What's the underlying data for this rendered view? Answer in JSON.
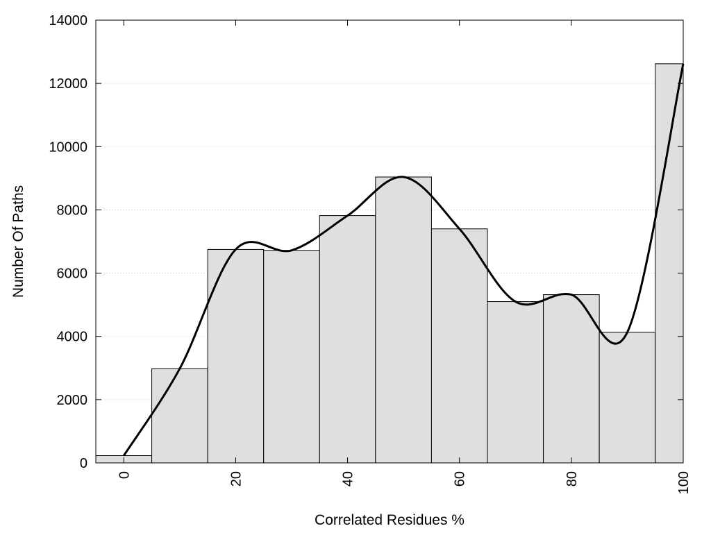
{
  "chart_data": {
    "type": "bar",
    "xlabel": "Correlated Residues %",
    "ylabel": "Number Of Paths",
    "xlim": [
      -5,
      100
    ],
    "ylim": [
      0,
      14000
    ],
    "x_ticks": [
      0,
      20,
      40,
      60,
      80,
      100
    ],
    "y_ticks": [
      0,
      2000,
      4000,
      6000,
      8000,
      10000,
      12000,
      14000
    ],
    "grid": "horizontal dotted",
    "categories": [
      0,
      10,
      20,
      30,
      40,
      50,
      60,
      70,
      80,
      90,
      100
    ],
    "values": [
      230,
      2980,
      6750,
      6720,
      7820,
      9040,
      7400,
      5100,
      5320,
      4130,
      12620
    ],
    "bar_width": 10,
    "smooth_curve": {
      "x": [
        0,
        10,
        20,
        30,
        40,
        50,
        60,
        70,
        80,
        90,
        100
      ],
      "y": [
        230,
        2980,
        6750,
        6720,
        7820,
        9040,
        7400,
        5100,
        5320,
        4130,
        12620
      ]
    },
    "colors": {
      "bar_fill": "#dfdfdf",
      "bar_stroke": "#000000",
      "curve": "#000000",
      "grid": "#c8c8c8"
    }
  }
}
